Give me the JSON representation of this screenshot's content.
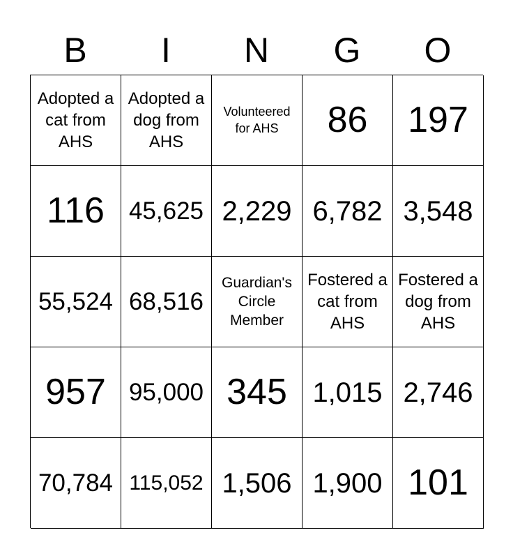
{
  "header": [
    "B",
    "I",
    "N",
    "G",
    "O"
  ],
  "cells": [
    [
      "Adopted a cat from AHS",
      "Adopted a dog from AHS",
      "Volunteered for AHS",
      "86",
      "197"
    ],
    [
      "116",
      "45,625",
      "2,229",
      "6,782",
      "3,548"
    ],
    [
      "55,524",
      "68,516",
      "Guardian's Circle Member",
      "Fostered a cat from AHS",
      "Fostered a dog from AHS"
    ],
    [
      "957",
      "95,000",
      "345",
      "1,015",
      "2,746"
    ],
    [
      "70,784",
      "115,052",
      "1,506",
      "1,900",
      "101"
    ]
  ],
  "colors": {
    "grid": "#000000",
    "text": "#000000",
    "background": "#ffffff"
  }
}
